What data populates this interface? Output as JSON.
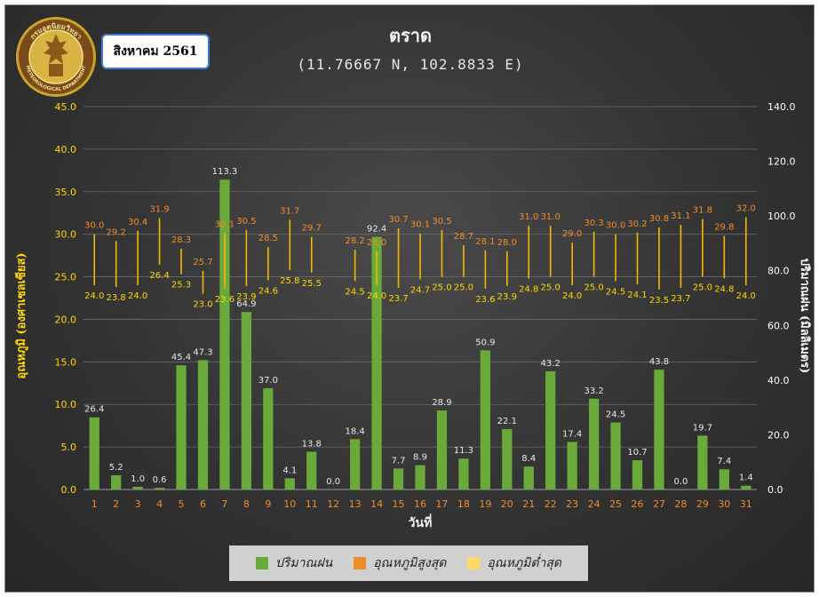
{
  "header": {
    "title": "ตราด",
    "subtitle": "(11.76667 N, 102.8833 E)",
    "month_label": "สิงหาคม 2561",
    "logo_text": "กรมอุตุนิยมวิทยา METEOROLOGICAL DEPARTMENT"
  },
  "legend": {
    "rain": "ปริมาณฝน",
    "tmax": "อุณหภูมิสูงสุด",
    "tmin": "อุณหภูมิต่ำสุด"
  },
  "colors": {
    "rain_bar": "#6aaa3a",
    "rain_legend": "#6aaa3a",
    "tmax_legend": "#f28c28",
    "tmin_legend": "#ffd966",
    "temp_line": "#f5b800",
    "tmax_label": "#f28c28",
    "tmin_label": "#ffd700",
    "left_axis": "#ffd700",
    "right_axis": "#ffffff",
    "x_ticks": "#f28c28"
  },
  "chart_data": {
    "type": "bar",
    "xlabel": "วันที่",
    "ylabel_left": "อุณหภูมิ (องศาเซลเซียส)",
    "ylabel_right": "ปริมาณฝน (มิลลิเมตร)",
    "ylim_left": [
      0,
      45
    ],
    "ylim_right": [
      0,
      140
    ],
    "left_ticks": [
      "0.0",
      "5.0",
      "10.0",
      "15.0",
      "20.0",
      "25.0",
      "30.0",
      "35.0",
      "40.0",
      "45.0"
    ],
    "right_ticks": [
      "0.0",
      "20.0",
      "40.0",
      "60.0",
      "80.0",
      "100.0",
      "120.0",
      "140.0"
    ],
    "grid": true,
    "legend_position": "bottom",
    "days": [
      1,
      2,
      3,
      4,
      5,
      6,
      7,
      8,
      9,
      10,
      11,
      12,
      13,
      14,
      15,
      16,
      17,
      18,
      19,
      20,
      21,
      22,
      23,
      24,
      25,
      26,
      27,
      28,
      29,
      30,
      31
    ],
    "series": [
      {
        "name": "ปริมาณฝน",
        "axis": "right",
        "values": [
          26.4,
          5.2,
          1.0,
          0.6,
          45.4,
          47.3,
          113.3,
          64.9,
          37.0,
          4.1,
          13.8,
          0.0,
          18.4,
          92.4,
          7.7,
          8.9,
          28.9,
          11.3,
          50.9,
          22.1,
          8.4,
          43.2,
          17.4,
          33.2,
          24.5,
          10.7,
          43.8,
          0.0,
          19.7,
          7.4,
          1.4
        ]
      },
      {
        "name": "อุณหภูมิสูงสุด",
        "axis": "left",
        "values": [
          30.0,
          29.2,
          30.4,
          31.9,
          28.3,
          25.7,
          30.1,
          30.5,
          28.5,
          31.7,
          29.7,
          null,
          28.2,
          28.0,
          30.7,
          30.1,
          30.5,
          28.7,
          28.1,
          28.0,
          31.0,
          31.0,
          29.0,
          30.3,
          30.0,
          30.2,
          30.8,
          31.1,
          31.8,
          29.8,
          32.0
        ]
      },
      {
        "name": "อุณหภูมิต่ำสุด",
        "axis": "left",
        "values": [
          24.0,
          23.8,
          24.0,
          26.4,
          25.3,
          23.0,
          23.6,
          23.9,
          24.6,
          25.8,
          25.5,
          null,
          24.5,
          24.0,
          23.7,
          24.7,
          25.0,
          25.0,
          23.6,
          23.9,
          24.8,
          25.0,
          24.0,
          25.0,
          24.5,
          24.1,
          23.5,
          23.7,
          25.0,
          24.8,
          24.0
        ]
      }
    ]
  }
}
